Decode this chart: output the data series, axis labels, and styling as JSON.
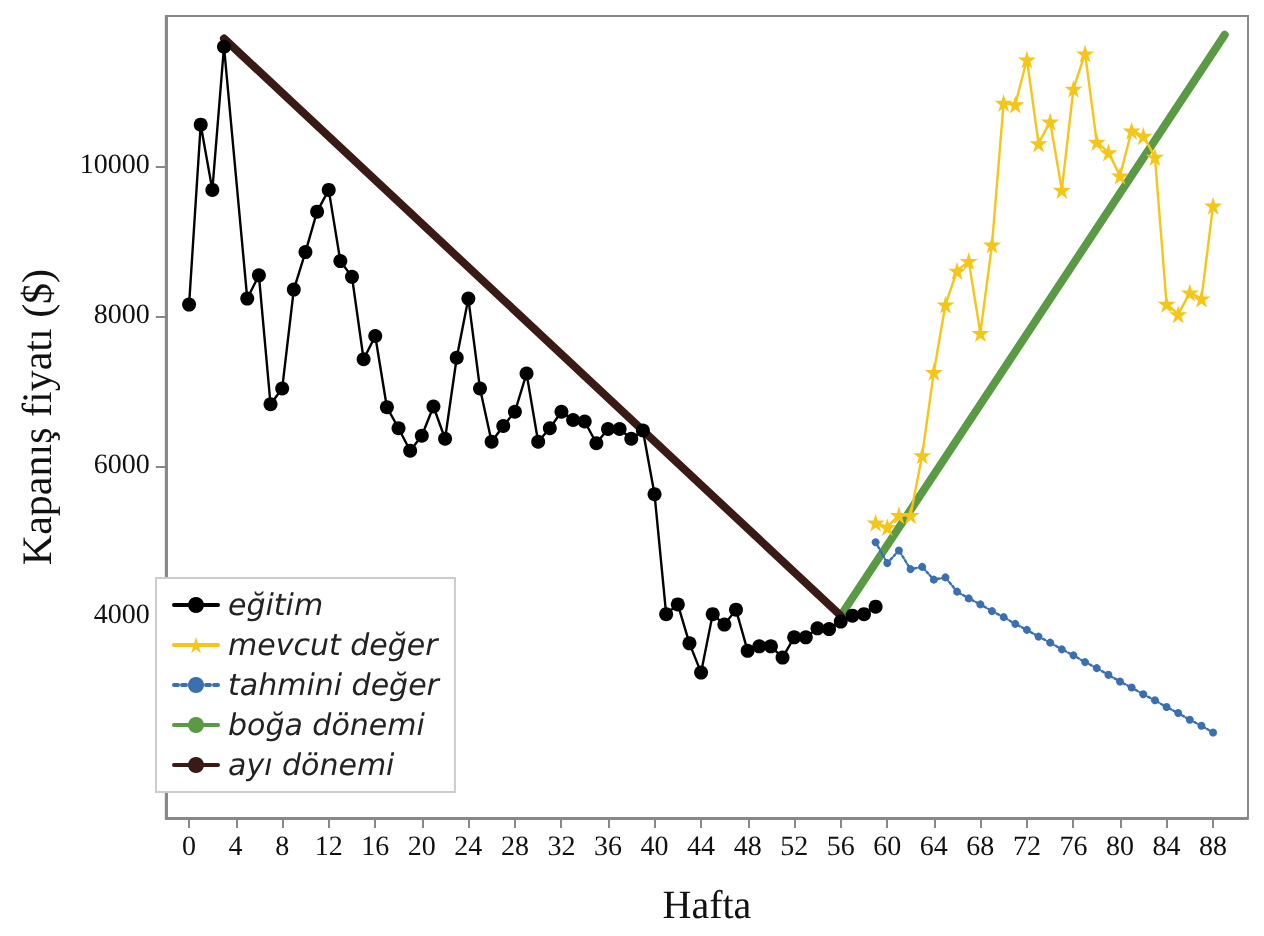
{
  "chart_data": {
    "type": "line",
    "xlabel": "Hafta",
    "ylabel": "Kapanış fiyatı ($)",
    "xlim": [
      -2,
      91
    ],
    "xticks": [
      0,
      4,
      8,
      12,
      16,
      20,
      24,
      28,
      32,
      36,
      40,
      44,
      48,
      52,
      56,
      60,
      64,
      68,
      72,
      76,
      80,
      84,
      88
    ],
    "ylim": [
      1300,
      12000
    ],
    "yticks": [
      4000,
      6000,
      8000,
      10000
    ],
    "grid": false,
    "legend": "bottom left",
    "series": [
      {
        "name": "eğitim",
        "marker": "circle",
        "line_style": "solid",
        "color": "#000000",
        "x": [
          0,
          1,
          2,
          3,
          5,
          6,
          7,
          8,
          9,
          10,
          11,
          12,
          13,
          14,
          15,
          16,
          17,
          18,
          19,
          20,
          21,
          22,
          23,
          24,
          25,
          26,
          27,
          28,
          29,
          30,
          31,
          32,
          33,
          34,
          35,
          36,
          37,
          38,
          39,
          40,
          41,
          42,
          43,
          44,
          45,
          46,
          47,
          48,
          49,
          50,
          51,
          52,
          53,
          54,
          55,
          56,
          57,
          58,
          59
        ],
        "values": [
          8150,
          10550,
          9680,
          11590,
          8230,
          8540,
          6820,
          7030,
          8350,
          8850,
          9390,
          9680,
          8730,
          8520,
          7420,
          7730,
          6780,
          6500,
          6200,
          6400,
          6790,
          6360,
          7440,
          8230,
          7030,
          6320,
          6530,
          6720,
          7230,
          6320,
          6500,
          6720,
          6610,
          6590,
          6300,
          6490,
          6490,
          6360,
          6470,
          5620,
          4020,
          4150,
          3630,
          3240,
          4020,
          3880,
          4080,
          3530,
          3590,
          3590,
          3440,
          3710,
          3710,
          3830,
          3820,
          3920,
          4000,
          4020,
          4120
        ]
      },
      {
        "name": "mevcut değer",
        "marker": "star",
        "line_style": "solid",
        "color": "#f5c518",
        "x": [
          59,
          60,
          61,
          62,
          63,
          64,
          65,
          66,
          67,
          68,
          69,
          70,
          71,
          72,
          73,
          74,
          75,
          76,
          77,
          78,
          79,
          80,
          81,
          82,
          83,
          84,
          85,
          86,
          87,
          88
        ],
        "values": [
          5240,
          5180,
          5340,
          5340,
          6140,
          7250,
          8150,
          8600,
          8730,
          7770,
          8950,
          10840,
          10820,
          11420,
          10300,
          10590,
          9680,
          11030,
          11500,
          10320,
          10180,
          9870,
          10470,
          10400,
          10120,
          8160,
          8020,
          8310,
          8230,
          9470
        ]
      },
      {
        "name": "tahmini değer",
        "marker": "circle",
        "line_style": "dotted",
        "color": "#3a6fb0",
        "x": [
          59,
          60,
          61,
          62,
          63,
          64,
          65,
          66,
          67,
          68,
          69,
          70,
          71,
          72,
          73,
          74,
          75,
          76,
          77,
          78,
          79,
          80,
          81,
          82,
          83,
          84,
          85,
          86,
          87,
          88
        ],
        "values": [
          4980,
          4700,
          4870,
          4620,
          4650,
          4480,
          4510,
          4320,
          4230,
          4150,
          4060,
          3980,
          3890,
          3810,
          3720,
          3640,
          3550,
          3470,
          3380,
          3300,
          3210,
          3120,
          3040,
          2950,
          2870,
          2780,
          2700,
          2610,
          2530,
          2440
        ]
      },
      {
        "name": "boğa dönemi",
        "marker": "none",
        "line_style": "solid",
        "color": "#5a9a44",
        "x": [
          56,
          89
        ],
        "values": [
          4000,
          11750
        ]
      },
      {
        "name": "ayı dönemi",
        "marker": "none",
        "line_style": "solid",
        "color": "#3a1a14",
        "x": [
          3,
          56
        ],
        "values": [
          11700,
          4000
        ]
      }
    ]
  }
}
